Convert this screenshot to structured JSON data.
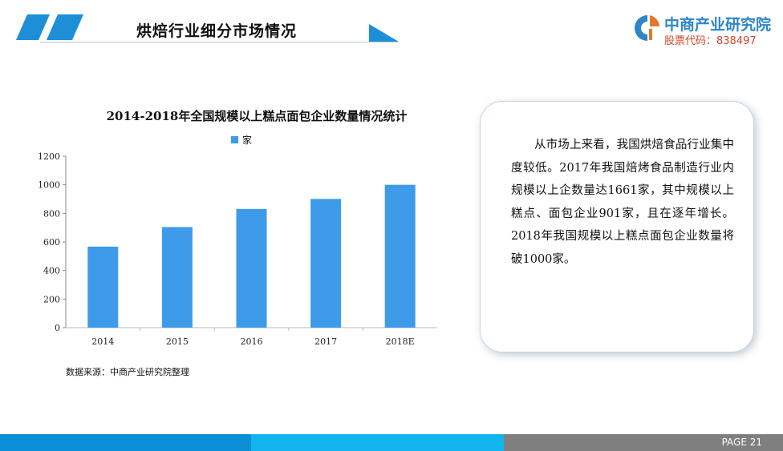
{
  "header": {
    "title": "烘焙行业细分市场情况",
    "logo_name": "中商产业研究院",
    "logo_code": "股票代码：838497"
  },
  "colors": {
    "accent": "#3399e6",
    "bar": "#3d9be9",
    "footer_dark": "#0a8fd6",
    "footer_light": "#12b4f0",
    "footer_gray": "#7f7f7f"
  },
  "chart_data": {
    "type": "bar",
    "title": "2014-2018年全国规模以上糕点面包企业数量情况统计",
    "categories": [
      "2014",
      "2015",
      "2016",
      "2017",
      "2018E"
    ],
    "series": [
      {
        "name": "家",
        "values": [
          567,
          704,
          831,
          901,
          1000
        ]
      }
    ],
    "yticks": [
      "0",
      "200",
      "400",
      "600",
      "800",
      "1000",
      "1200"
    ],
    "ylim": [
      0,
      1200
    ],
    "legend": "top-center",
    "grid": false
  },
  "source": "数据来源：中商产业研究院整理",
  "textbox": "从市场上来看，我国烘焙食品行业集中度较低。2017年我国焙烤食品制造行业内规模以上企数量达1661家，其中规模以上糕点、面包企业901家，且在逐年增长。2018年我国规模以上糕点面包企业数量将破1000家。",
  "footer": {
    "page": "PAGE  21"
  }
}
